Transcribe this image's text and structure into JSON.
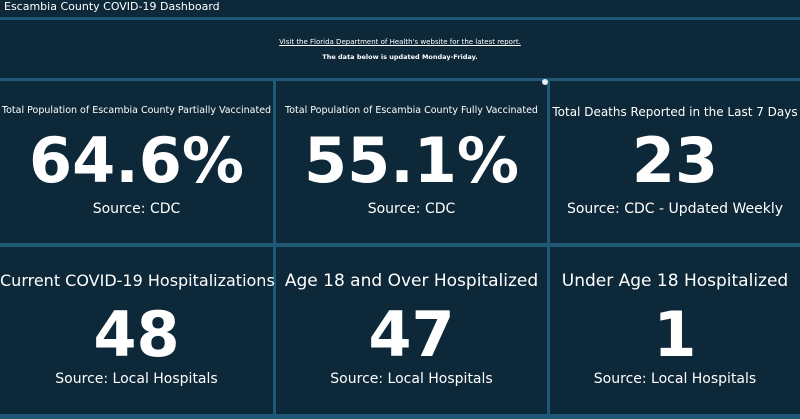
{
  "header": {
    "title": "Escambia County COVID-19 Dashboard"
  },
  "notice": {
    "link": "Visit the Florida Department of Health's website for the latest report.",
    "text": "The data below is updated Monday-Friday."
  },
  "tiles": [
    {
      "title": "Total Population of Escambia County Partially Vaccinated",
      "value": "64.6%",
      "source": "Source: CDC"
    },
    {
      "title": "Total Population of Escambia County Fully Vaccinated",
      "value": "55.1%",
      "source": "Source: CDC"
    },
    {
      "title": "Total Deaths Reported in the Last 7 Days",
      "value": 23,
      "source": "Source: CDC - Updated Weekly"
    },
    {
      "title": "Current COVID-19 Hospitalizations",
      "value": 48,
      "source": "Source: Local Hospitals"
    },
    {
      "title": "Age 18 and Over Hospitalized",
      "value": 47,
      "source": "Source: Local Hospitals"
    },
    {
      "title": "Under Age 18 Hospitalized",
      "value": 1,
      "source": "Source: Local Hospitals"
    }
  ]
}
